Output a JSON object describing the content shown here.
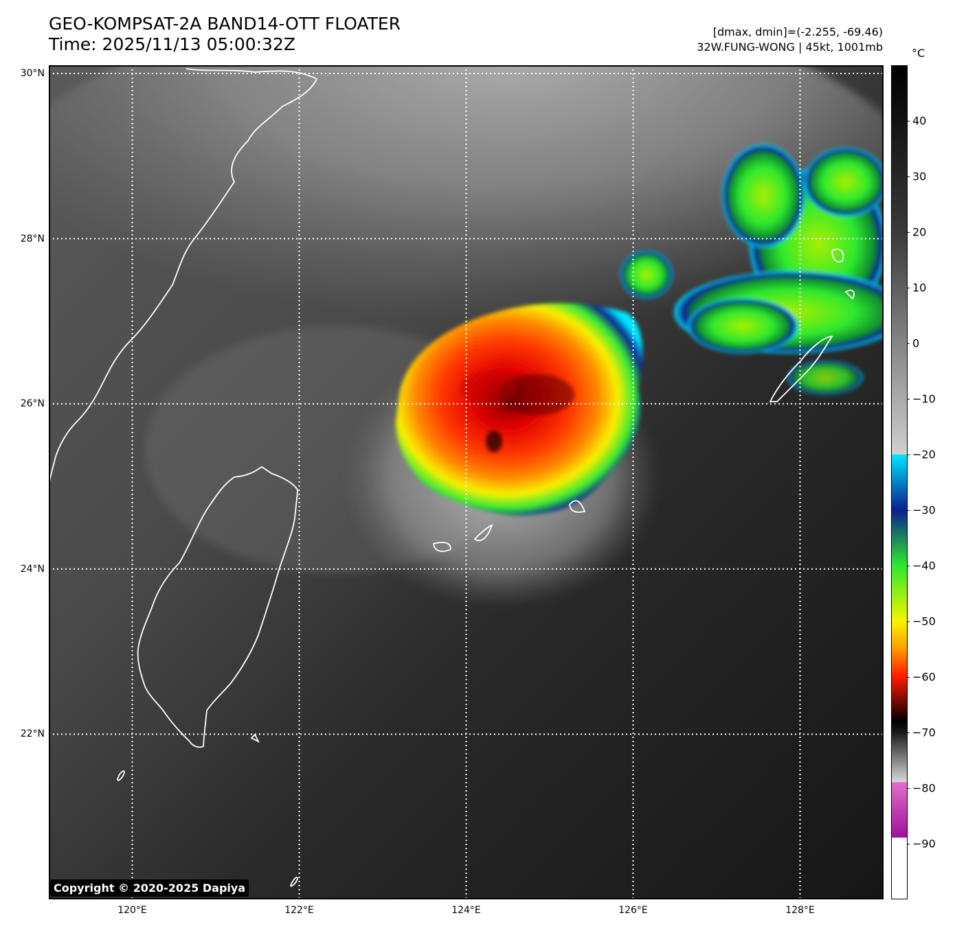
{
  "header": {
    "title_line1": "GEO-KOMPSAT-2A BAND14-OTT FLOATER",
    "title_line2": "Time: 2025/11/13 05:00:32Z",
    "range_text": "[dmax, dmin]=(-2.255, -69.46)",
    "storm_text": "32W.FUNG-WONG | 45kt, 1001mb"
  },
  "map": {
    "lat_labels": [
      "30°N",
      "28°N",
      "26°N",
      "24°N",
      "22°N"
    ],
    "lon_labels": [
      "120°E",
      "122°E",
      "124°E",
      "126°E",
      "128°E"
    ],
    "lat_values": [
      30,
      28,
      26,
      24,
      22
    ],
    "lon_values": [
      120,
      122,
      124,
      126,
      128
    ],
    "extent": {
      "lon_min": 119,
      "lon_max": 129,
      "lat_min": 20,
      "lat_max": 30.1
    },
    "copyright": "Copyright © 2020-2025 Dapiya"
  },
  "colorbar": {
    "unit": "°C",
    "tick_labels": [
      "40",
      "30",
      "20",
      "10",
      "0",
      "−10",
      "−20",
      "−30",
      "−40",
      "−50",
      "−60",
      "−70",
      "−80",
      "−90"
    ],
    "tick_values": [
      40,
      30,
      20,
      10,
      0,
      -10,
      -20,
      -30,
      -40,
      -50,
      -60,
      -70,
      -80,
      -90
    ],
    "range": [
      -100,
      50
    ]
  },
  "colors": {
    "warm_dark": "#111111",
    "cloud_gray": "#9a9a9a",
    "cyan": "#00e5ff",
    "blue": "#0a1f8f",
    "green": "#2ee82e",
    "yellow": "#f5f500",
    "orange": "#ff9a00",
    "red": "#ff1a00",
    "dark_red": "#5a0000",
    "magenta": "#c040b0"
  }
}
